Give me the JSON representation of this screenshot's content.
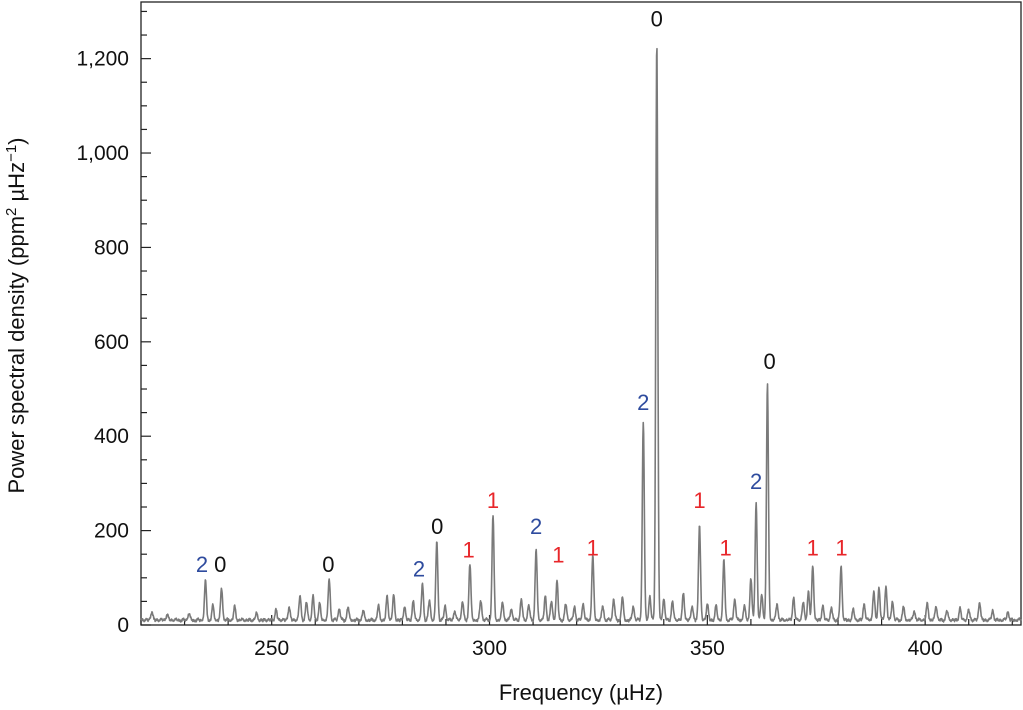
{
  "chart_data": {
    "type": "line",
    "title": "",
    "xlabel": "Frequency (µHz)",
    "ylabel_main": "Power spectral density (ppm",
    "ylabel_sup1": "2",
    "ylabel_mid": " µHz",
    "ylabel_sup2": "−1",
    "ylabel_end": ")",
    "xlim": [
      220,
      422
    ],
    "ylim": [
      0,
      1320
    ],
    "x_major_ticks": [
      250,
      300,
      350,
      400
    ],
    "x_major_tick_labels": [
      "250",
      "300",
      "350",
      "400"
    ],
    "x_minor_step": 10,
    "y_major_ticks": [
      0,
      200,
      400,
      600,
      800,
      1000,
      1200
    ],
    "y_major_tick_labels": [
      "0",
      "200",
      "400",
      "600",
      "800",
      "1,000",
      "1,200"
    ],
    "y_minor_step": 50,
    "line_color": "#7a7a7a",
    "label_colors": {
      "0": "#111111",
      "1": "#e8262a",
      "2": "#2e4b9e"
    },
    "peaks": [
      {
        "x": 234.8,
        "y": 82
      },
      {
        "x": 238.5,
        "y": 68
      },
      {
        "x": 263.2,
        "y": 88
      },
      {
        "x": 284.6,
        "y": 77
      },
      {
        "x": 287.9,
        "y": 168
      },
      {
        "x": 295.5,
        "y": 120
      },
      {
        "x": 300.8,
        "y": 222
      },
      {
        "x": 310.7,
        "y": 150
      },
      {
        "x": 315.5,
        "y": 82
      },
      {
        "x": 323.7,
        "y": 137
      },
      {
        "x": 335.3,
        "y": 422
      },
      {
        "x": 338.4,
        "y": 1228
      },
      {
        "x": 348.2,
        "y": 203
      },
      {
        "x": 353.8,
        "y": 126
      },
      {
        "x": 361.2,
        "y": 250
      },
      {
        "x": 363.8,
        "y": 498
      },
      {
        "x": 374.2,
        "y": 115
      },
      {
        "x": 380.7,
        "y": 113
      }
    ],
    "minor_peaks": [
      {
        "x": 222.5,
        "y": 18
      },
      {
        "x": 226.0,
        "y": 12
      },
      {
        "x": 231.0,
        "y": 14
      },
      {
        "x": 236.5,
        "y": 30
      },
      {
        "x": 241.5,
        "y": 28
      },
      {
        "x": 246.5,
        "y": 14
      },
      {
        "x": 251.0,
        "y": 22
      },
      {
        "x": 254.0,
        "y": 28
      },
      {
        "x": 256.5,
        "y": 52
      },
      {
        "x": 258.0,
        "y": 38
      },
      {
        "x": 259.5,
        "y": 50
      },
      {
        "x": 261.0,
        "y": 35
      },
      {
        "x": 265.5,
        "y": 25
      },
      {
        "x": 267.5,
        "y": 28
      },
      {
        "x": 271.0,
        "y": 20
      },
      {
        "x": 274.5,
        "y": 30
      },
      {
        "x": 276.5,
        "y": 50
      },
      {
        "x": 278.0,
        "y": 52
      },
      {
        "x": 280.5,
        "y": 28
      },
      {
        "x": 282.5,
        "y": 40
      },
      {
        "x": 286.2,
        "y": 42
      },
      {
        "x": 289.8,
        "y": 30
      },
      {
        "x": 292.0,
        "y": 20
      },
      {
        "x": 293.8,
        "y": 40
      },
      {
        "x": 298.0,
        "y": 42
      },
      {
        "x": 303.0,
        "y": 38
      },
      {
        "x": 305.0,
        "y": 25
      },
      {
        "x": 307.3,
        "y": 45
      },
      {
        "x": 309.0,
        "y": 32
      },
      {
        "x": 312.8,
        "y": 50
      },
      {
        "x": 314.2,
        "y": 40
      },
      {
        "x": 317.5,
        "y": 35
      },
      {
        "x": 319.5,
        "y": 28
      },
      {
        "x": 321.5,
        "y": 35
      },
      {
        "x": 326.0,
        "y": 30
      },
      {
        "x": 328.5,
        "y": 45
      },
      {
        "x": 330.5,
        "y": 48
      },
      {
        "x": 333.0,
        "y": 30
      },
      {
        "x": 336.8,
        "y": 50
      },
      {
        "x": 340.0,
        "y": 45
      },
      {
        "x": 342.0,
        "y": 40
      },
      {
        "x": 344.5,
        "y": 58
      },
      {
        "x": 346.5,
        "y": 30
      },
      {
        "x": 350.0,
        "y": 35
      },
      {
        "x": 352.0,
        "y": 30
      },
      {
        "x": 356.3,
        "y": 45
      },
      {
        "x": 358.5,
        "y": 30
      },
      {
        "x": 360.0,
        "y": 90
      },
      {
        "x": 362.5,
        "y": 55
      },
      {
        "x": 366.0,
        "y": 35
      },
      {
        "x": 369.8,
        "y": 48
      },
      {
        "x": 372.0,
        "y": 38
      },
      {
        "x": 373.2,
        "y": 60
      },
      {
        "x": 376.5,
        "y": 30
      },
      {
        "x": 378.5,
        "y": 25
      },
      {
        "x": 383.5,
        "y": 22
      },
      {
        "x": 386.0,
        "y": 35
      },
      {
        "x": 388.2,
        "y": 60
      },
      {
        "x": 389.4,
        "y": 70
      },
      {
        "x": 391.0,
        "y": 72
      },
      {
        "x": 392.5,
        "y": 40
      },
      {
        "x": 395.0,
        "y": 28
      },
      {
        "x": 397.5,
        "y": 20
      },
      {
        "x": 400.5,
        "y": 35
      },
      {
        "x": 402.5,
        "y": 30
      },
      {
        "x": 405.0,
        "y": 20
      },
      {
        "x": 408.0,
        "y": 25
      },
      {
        "x": 410.0,
        "y": 22
      },
      {
        "x": 412.5,
        "y": 38
      },
      {
        "x": 415.5,
        "y": 20
      },
      {
        "x": 419.0,
        "y": 18
      }
    ],
    "annotations": [
      {
        "text": "2",
        "degree": 2,
        "x": 234.0,
        "y": 100
      },
      {
        "text": "0",
        "degree": 0,
        "x": 238.2,
        "y": 100
      },
      {
        "text": "0",
        "degree": 0,
        "x": 263.0,
        "y": 100
      },
      {
        "text": "2",
        "degree": 2,
        "x": 283.8,
        "y": 90
      },
      {
        "text": "0",
        "degree": 0,
        "x": 288.0,
        "y": 180
      },
      {
        "text": "1",
        "degree": 1,
        "x": 295.2,
        "y": 130
      },
      {
        "text": "1",
        "degree": 1,
        "x": 300.8,
        "y": 235
      },
      {
        "text": "2",
        "degree": 2,
        "x": 310.7,
        "y": 180
      },
      {
        "text": "1",
        "degree": 1,
        "x": 315.8,
        "y": 120
      },
      {
        "text": "1",
        "degree": 1,
        "x": 323.7,
        "y": 135
      },
      {
        "text": "2",
        "degree": 2,
        "x": 335.3,
        "y": 443
      },
      {
        "text": "0",
        "degree": 0,
        "x": 338.4,
        "y": 1255
      },
      {
        "text": "1",
        "degree": 1,
        "x": 348.2,
        "y": 235
      },
      {
        "text": "1",
        "degree": 1,
        "x": 354.2,
        "y": 135
      },
      {
        "text": "2",
        "degree": 2,
        "x": 361.2,
        "y": 275
      },
      {
        "text": "0",
        "degree": 0,
        "x": 364.3,
        "y": 530
      },
      {
        "text": "1",
        "degree": 1,
        "x": 374.2,
        "y": 135
      },
      {
        "text": "1",
        "degree": 1,
        "x": 380.8,
        "y": 135
      }
    ]
  }
}
